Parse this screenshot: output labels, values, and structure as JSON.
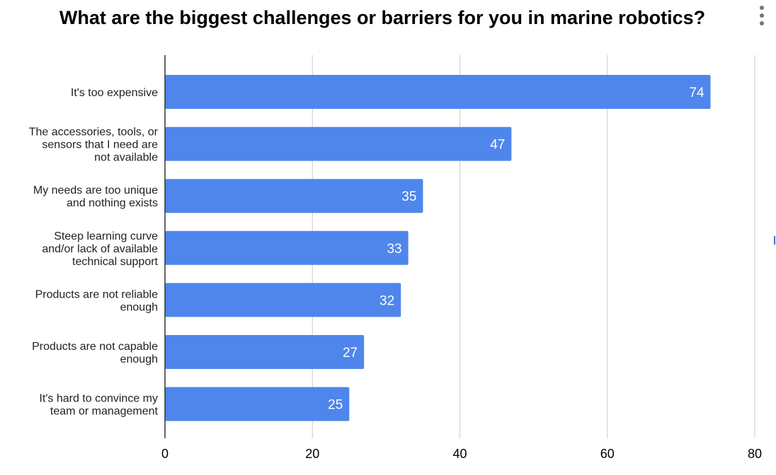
{
  "title": "What are the biggest challenges or barriers for you in marine robotics?",
  "menu": {
    "icon": "more-vert-icon"
  },
  "colors": {
    "bar": "#4f86ec",
    "grid": "#cccccc",
    "axis": "#333333",
    "label": "#ffffff"
  },
  "chart_data": {
    "type": "bar",
    "orientation": "horizontal",
    "categories": [
      [
        "It's too expensive"
      ],
      [
        "The accessories, tools, or",
        "sensors that I need are",
        "not available"
      ],
      [
        "My needs are too unique",
        "and nothing exists"
      ],
      [
        "Steep learning curve",
        "and/or lack of available",
        "technical support"
      ],
      [
        "Products are not reliable",
        "enough"
      ],
      [
        "Products are not capable",
        "enough"
      ],
      [
        "It's hard to convince my",
        "team or management"
      ]
    ],
    "values": [
      74,
      47,
      35,
      33,
      32,
      27,
      25
    ],
    "xlim": [
      0,
      80
    ],
    "xticks": [
      0,
      20,
      40,
      60,
      80
    ],
    "grid": true,
    "data_labels": true
  }
}
